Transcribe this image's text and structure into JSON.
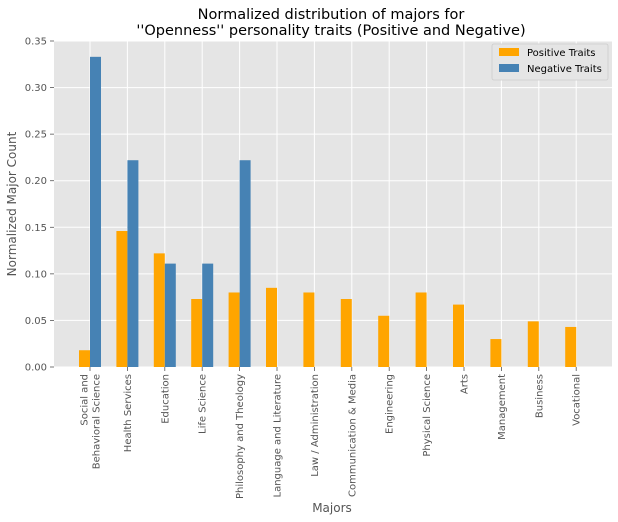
{
  "chart_data": {
    "type": "bar",
    "title_line1": "Normalized distribution of majors for",
    "title_line2": "''Openness'' personality traits (Positive and Negative)",
    "xlabel": "Majors",
    "ylabel": "Normalized Major Count",
    "ylim": [
      0,
      0.35
    ],
    "yticks": [
      "0.00",
      "0.05",
      "0.10",
      "0.15",
      "0.20",
      "0.25",
      "0.30",
      "0.35"
    ],
    "grid": true,
    "legend_position": "top-right",
    "categories": [
      "Social and\nBehavioral Science",
      "Health Services",
      "Education",
      "Life Science",
      "Philosophy and Theology",
      "Language and Literature",
      "Law / Administration",
      "Communication & Media",
      "Engineering",
      "Physical Science",
      "Arts",
      "Management",
      "Business",
      "Vocational"
    ],
    "series": [
      {
        "name": "Positive Traits",
        "color": "#FFA500",
        "values": [
          0.018,
          0.146,
          0.122,
          0.073,
          0.08,
          0.085,
          0.08,
          0.073,
          0.055,
          0.08,
          0.067,
          0.03,
          0.049,
          0.043
        ]
      },
      {
        "name": "Negative Traits",
        "color": "#4682B4",
        "values": [
          0.333,
          0.222,
          0.111,
          0.111,
          0.222,
          0,
          0,
          0,
          0,
          0,
          0,
          0,
          0,
          0
        ]
      }
    ]
  }
}
